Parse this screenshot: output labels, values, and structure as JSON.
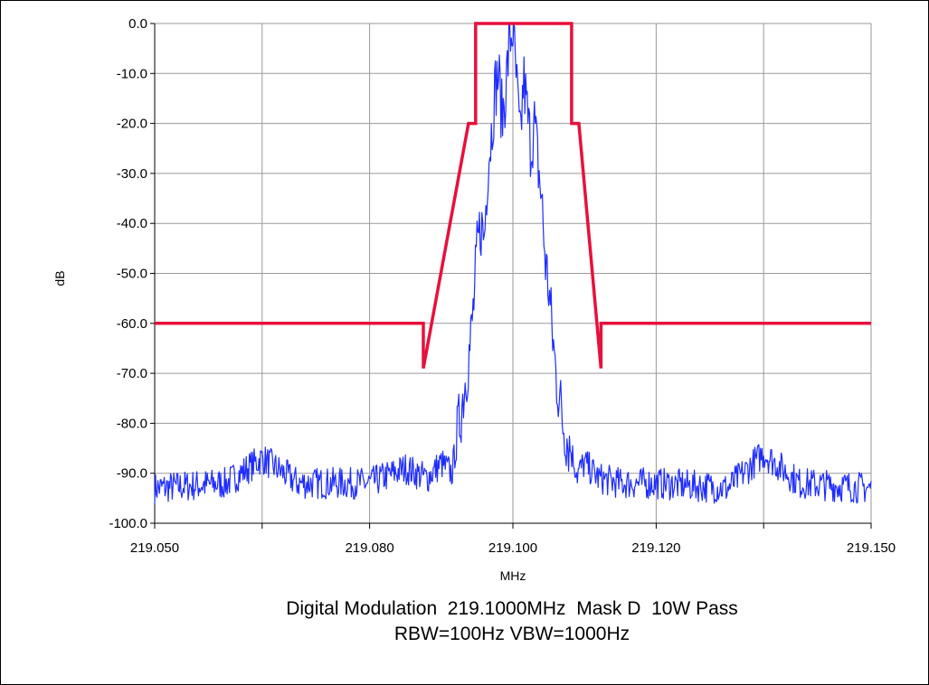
{
  "chart_data": {
    "type": "line",
    "xlabel": "MHz",
    "ylabel": "dB",
    "xlim": [
      219.05,
      219.15
    ],
    "ylim": [
      -100,
      0
    ],
    "x_ticks": [
      219.05,
      219.065,
      219.08,
      219.1,
      219.12,
      219.135,
      219.15
    ],
    "x_tick_labels": [
      "219.050",
      "",
      "219.080",
      "219.100",
      "219.120",
      "",
      "219.150"
    ],
    "y_ticks": [
      0,
      -10,
      -20,
      -30,
      -40,
      -50,
      -60,
      -70,
      -80,
      -90,
      -100
    ],
    "y_tick_labels": [
      "0.0",
      "-10.0",
      "-20.0",
      "-30.0",
      "-40.0",
      "-50.0",
      "-60.0",
      "-70.0",
      "-80.0",
      "-90.0",
      "-100.0"
    ],
    "grid": true,
    "legend": "none",
    "colors": {
      "mask": "#e8103c",
      "spectrum": "#1e2cff",
      "grid": "#9a9a9a"
    },
    "series": [
      {
        "role": "mask",
        "x": [
          219.05,
          219.0875,
          219.0875,
          219.0938,
          219.0948,
          219.0948,
          219.1082,
          219.1082,
          219.1092,
          219.1123,
          219.1123,
          219.15
        ],
        "y": [
          -60,
          -60,
          -69,
          -20,
          -20,
          0,
          0,
          -20,
          -20,
          -69,
          -60,
          -60
        ]
      },
      {
        "role": "spectrum",
        "x": [
          219.05,
          219.06,
          219.065,
          219.07,
          219.08,
          219.085,
          219.088,
          219.09,
          219.0915,
          219.0925,
          219.0935,
          219.094,
          219.0945,
          219.095,
          219.0955,
          219.096,
          219.0965,
          219.097,
          219.0975,
          219.098,
          219.0985,
          219.099,
          219.0995,
          219.1,
          219.1005,
          219.101,
          219.1015,
          219.102,
          219.1025,
          219.103,
          219.1035,
          219.104,
          219.1045,
          219.105,
          219.1055,
          219.106,
          219.1065,
          219.107,
          219.108,
          219.109,
          219.11,
          219.112,
          219.115,
          219.12,
          219.13,
          219.135,
          219.14,
          219.15
        ],
        "y": [
          -93,
          -92,
          -87,
          -92,
          -92,
          -89,
          -91,
          -88,
          -90,
          -80,
          -70,
          -65,
          -57,
          -46,
          -40,
          -43,
          -28,
          -22,
          -13,
          -10,
          -19,
          -13,
          -4,
          -1,
          -12,
          -24,
          -11,
          -18,
          -25,
          -20,
          -28,
          -35,
          -47,
          -53,
          -62,
          -70,
          -75,
          -80,
          -85,
          -90,
          -88,
          -91,
          -92,
          -92,
          -93,
          -86,
          -92,
          -93
        ]
      }
    ]
  },
  "caption": {
    "line1": "Digital Modulation  219.1000MHz  Mask D  10W Pass",
    "line2": "RBW=100Hz VBW=1000Hz"
  }
}
